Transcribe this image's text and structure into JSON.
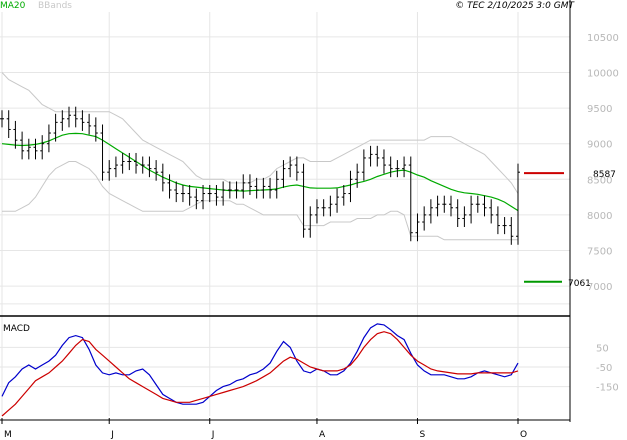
{
  "header": {
    "ma_label": "MA20",
    "bb_label": "BBands",
    "ma_color": "#00aa00",
    "bb_color": "#c8c8c8",
    "copyright": "© TEC 2/10/2025 3:0 GMT"
  },
  "chart_data": [
    {
      "type": "bar",
      "subtype": "ohlc",
      "y_ticks": [
        "10500",
        "10000",
        "9500",
        "9000",
        "8500",
        "8000",
        "7500",
        "7000"
      ],
      "ylim": [
        6580,
        10850
      ],
      "x_labels": [
        "M",
        "J",
        "J",
        "A",
        "S",
        "O"
      ],
      "grid": true,
      "overlays": [
        "MA20",
        "BBands"
      ],
      "price_close": [
        9350,
        9200,
        9050,
        8900,
        8950,
        8900,
        9000,
        9150,
        9300,
        9350,
        9400,
        9350,
        9300,
        9250,
        9150,
        8600,
        8650,
        8700,
        8750,
        8750,
        8700,
        8700,
        8650,
        8600,
        8450,
        8350,
        8300,
        8300,
        8250,
        8200,
        8300,
        8300,
        8250,
        8350,
        8350,
        8350,
        8450,
        8400,
        8350,
        8400,
        8350,
        8500,
        8650,
        8700,
        8600,
        7800,
        8000,
        8100,
        8100,
        8150,
        8250,
        8300,
        8500,
        8600,
        8800,
        8850,
        8800,
        8700,
        8650,
        8650,
        8700,
        7750,
        7900,
        8000,
        8100,
        8150,
        8150,
        8100,
        7950,
        8000,
        8150,
        8150,
        8100,
        8000,
        7850,
        7850,
        7700,
        8600
      ],
      "ma20": [
        9000,
        8990,
        8980,
        8975,
        8980,
        8990,
        9010,
        9040,
        9080,
        9120,
        9140,
        9145,
        9140,
        9120,
        9100,
        9050,
        8990,
        8930,
        8870,
        8810,
        8750,
        8690,
        8630,
        8580,
        8530,
        8490,
        8450,
        8420,
        8400,
        8390,
        8380,
        8370,
        8360,
        8350,
        8340,
        8340,
        8335,
        8340,
        8345,
        8350,
        8355,
        8365,
        8390,
        8410,
        8420,
        8400,
        8380,
        8375,
        8375,
        8375,
        8380,
        8400,
        8420,
        8450,
        8470,
        8500,
        8540,
        8570,
        8600,
        8620,
        8630,
        8600,
        8560,
        8530,
        8480,
        8440,
        8400,
        8360,
        8330,
        8310,
        8300,
        8290,
        8270,
        8250,
        8220,
        8180,
        8120,
        8060
      ],
      "bb_upper": [
        10000,
        9900,
        9850,
        9800,
        9750,
        9650,
        9550,
        9500,
        9450,
        9450,
        9450,
        9450,
        9450,
        9450,
        9450,
        9450,
        9450,
        9400,
        9350,
        9250,
        9150,
        9050,
        9000,
        8950,
        8900,
        8850,
        8800,
        8750,
        8650,
        8550,
        8500,
        8500,
        8500,
        8500,
        8450,
        8450,
        8450,
        8450,
        8500,
        8500,
        8550,
        8650,
        8700,
        8750,
        8800,
        8800,
        8750,
        8750,
        8750,
        8750,
        8800,
        8850,
        8900,
        8950,
        9000,
        9050,
        9050,
        9050,
        9050,
        9050,
        9050,
        9050,
        9050,
        9050,
        9100,
        9100,
        9100,
        9100,
        9050,
        9000,
        8950,
        8900,
        8850,
        8750,
        8650,
        8550,
        8450,
        8300
      ],
      "bb_lower": [
        8050,
        8050,
        8050,
        8100,
        8150,
        8250,
        8400,
        8550,
        8650,
        8700,
        8750,
        8750,
        8700,
        8650,
        8550,
        8400,
        8300,
        8250,
        8200,
        8150,
        8100,
        8050,
        8050,
        8050,
        8050,
        8050,
        8050,
        8050,
        8100,
        8150,
        8200,
        8200,
        8200,
        8200,
        8200,
        8150,
        8150,
        8100,
        8050,
        8000,
        8000,
        8000,
        8000,
        8000,
        8000,
        7850,
        7850,
        7850,
        7850,
        7900,
        7900,
        7900,
        7900,
        7950,
        7950,
        7950,
        8000,
        8000,
        8050,
        8050,
        8000,
        7700,
        7700,
        7700,
        7700,
        7700,
        7650,
        7650,
        7650,
        7650,
        7650,
        7650,
        7650,
        7650,
        7650,
        7650,
        7650,
        7650
      ],
      "resistance": {
        "value": 8587,
        "label": "8587",
        "color": "#cc0000"
      },
      "support": {
        "value": 7061,
        "label": "7061",
        "color": "#009900"
      }
    },
    {
      "type": "line",
      "title": "MACD",
      "y_ticks": [
        "50",
        "-50",
        "-150"
      ],
      "ylim": [
        -300,
        200
      ],
      "x_labels": [
        "M",
        "J",
        "J",
        "A",
        "S",
        "O"
      ],
      "series": [
        {
          "color": "#0000cc",
          "values": [
            -200,
            -130,
            -100,
            -60,
            -40,
            -60,
            -40,
            -20,
            10,
            60,
            100,
            110,
            100,
            40,
            -40,
            -80,
            -90,
            -80,
            -90,
            -90,
            -70,
            -60,
            -90,
            -140,
            -190,
            -210,
            -230,
            -240,
            -240,
            -240,
            -230,
            -200,
            -170,
            -150,
            -140,
            -120,
            -110,
            -90,
            -80,
            -60,
            -30,
            30,
            80,
            50,
            -20,
            -70,
            -80,
            -60,
            -70,
            -90,
            -90,
            -70,
            -30,
            30,
            100,
            150,
            170,
            165,
            140,
            110,
            90,
            20,
            -40,
            -70,
            -90,
            -90,
            -90,
            -100,
            -110,
            -110,
            -100,
            -80,
            -70,
            -80,
            -90,
            -100,
            -90,
            -30
          ]
        },
        {
          "color": "#cc0000",
          "values": [
            -300,
            -270,
            -240,
            -200,
            -160,
            -120,
            -100,
            -80,
            -50,
            -20,
            20,
            60,
            90,
            80,
            40,
            10,
            -20,
            -50,
            -80,
            -110,
            -130,
            -150,
            -170,
            -190,
            -210,
            -220,
            -230,
            -230,
            -230,
            -220,
            -210,
            -200,
            -190,
            -180,
            -170,
            -160,
            -150,
            -135,
            -120,
            -100,
            -80,
            -50,
            -20,
            0,
            -10,
            -30,
            -50,
            -60,
            -70,
            -70,
            -70,
            -60,
            -40,
            0,
            50,
            90,
            120,
            130,
            120,
            90,
            50,
            10,
            -20,
            -40,
            -60,
            -70,
            -75,
            -80,
            -85,
            -85,
            -85,
            -80,
            -80,
            -80,
            -80,
            -80,
            -80,
            -70
          ]
        }
      ]
    }
  ]
}
